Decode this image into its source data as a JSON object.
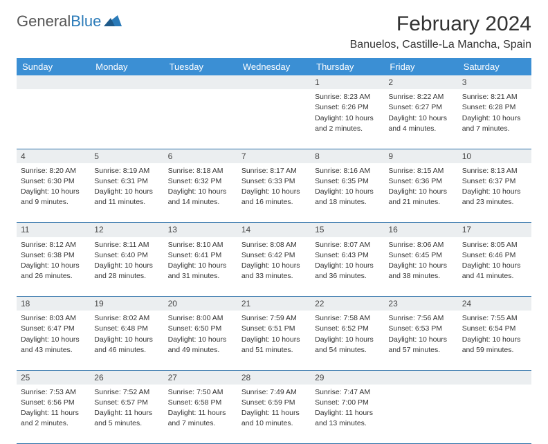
{
  "logo": {
    "text1": "General",
    "text2": "Blue"
  },
  "title": "February 2024",
  "location": "Banuelos, Castille-La Mancha, Spain",
  "colors": {
    "header_bg": "#3b8fd4",
    "header_text": "#ffffff",
    "daynum_bg": "#ebeef0",
    "rule": "#2a6fa8",
    "logo_gray": "#555555",
    "logo_blue": "#2a7ab8"
  },
  "weekdays": [
    "Sunday",
    "Monday",
    "Tuesday",
    "Wednesday",
    "Thursday",
    "Friday",
    "Saturday"
  ],
  "weeks": [
    {
      "nums": [
        "",
        "",
        "",
        "",
        "1",
        "2",
        "3"
      ],
      "cells": [
        null,
        null,
        null,
        null,
        {
          "sunrise": "Sunrise: 8:23 AM",
          "sunset": "Sunset: 6:26 PM",
          "day1": "Daylight: 10 hours",
          "day2": "and 2 minutes."
        },
        {
          "sunrise": "Sunrise: 8:22 AM",
          "sunset": "Sunset: 6:27 PM",
          "day1": "Daylight: 10 hours",
          "day2": "and 4 minutes."
        },
        {
          "sunrise": "Sunrise: 8:21 AM",
          "sunset": "Sunset: 6:28 PM",
          "day1": "Daylight: 10 hours",
          "day2": "and 7 minutes."
        }
      ]
    },
    {
      "nums": [
        "4",
        "5",
        "6",
        "7",
        "8",
        "9",
        "10"
      ],
      "cells": [
        {
          "sunrise": "Sunrise: 8:20 AM",
          "sunset": "Sunset: 6:30 PM",
          "day1": "Daylight: 10 hours",
          "day2": "and 9 minutes."
        },
        {
          "sunrise": "Sunrise: 8:19 AM",
          "sunset": "Sunset: 6:31 PM",
          "day1": "Daylight: 10 hours",
          "day2": "and 11 minutes."
        },
        {
          "sunrise": "Sunrise: 8:18 AM",
          "sunset": "Sunset: 6:32 PM",
          "day1": "Daylight: 10 hours",
          "day2": "and 14 minutes."
        },
        {
          "sunrise": "Sunrise: 8:17 AM",
          "sunset": "Sunset: 6:33 PM",
          "day1": "Daylight: 10 hours",
          "day2": "and 16 minutes."
        },
        {
          "sunrise": "Sunrise: 8:16 AM",
          "sunset": "Sunset: 6:35 PM",
          "day1": "Daylight: 10 hours",
          "day2": "and 18 minutes."
        },
        {
          "sunrise": "Sunrise: 8:15 AM",
          "sunset": "Sunset: 6:36 PM",
          "day1": "Daylight: 10 hours",
          "day2": "and 21 minutes."
        },
        {
          "sunrise": "Sunrise: 8:13 AM",
          "sunset": "Sunset: 6:37 PM",
          "day1": "Daylight: 10 hours",
          "day2": "and 23 minutes."
        }
      ]
    },
    {
      "nums": [
        "11",
        "12",
        "13",
        "14",
        "15",
        "16",
        "17"
      ],
      "cells": [
        {
          "sunrise": "Sunrise: 8:12 AM",
          "sunset": "Sunset: 6:38 PM",
          "day1": "Daylight: 10 hours",
          "day2": "and 26 minutes."
        },
        {
          "sunrise": "Sunrise: 8:11 AM",
          "sunset": "Sunset: 6:40 PM",
          "day1": "Daylight: 10 hours",
          "day2": "and 28 minutes."
        },
        {
          "sunrise": "Sunrise: 8:10 AM",
          "sunset": "Sunset: 6:41 PM",
          "day1": "Daylight: 10 hours",
          "day2": "and 31 minutes."
        },
        {
          "sunrise": "Sunrise: 8:08 AM",
          "sunset": "Sunset: 6:42 PM",
          "day1": "Daylight: 10 hours",
          "day2": "and 33 minutes."
        },
        {
          "sunrise": "Sunrise: 8:07 AM",
          "sunset": "Sunset: 6:43 PM",
          "day1": "Daylight: 10 hours",
          "day2": "and 36 minutes."
        },
        {
          "sunrise": "Sunrise: 8:06 AM",
          "sunset": "Sunset: 6:45 PM",
          "day1": "Daylight: 10 hours",
          "day2": "and 38 minutes."
        },
        {
          "sunrise": "Sunrise: 8:05 AM",
          "sunset": "Sunset: 6:46 PM",
          "day1": "Daylight: 10 hours",
          "day2": "and 41 minutes."
        }
      ]
    },
    {
      "nums": [
        "18",
        "19",
        "20",
        "21",
        "22",
        "23",
        "24"
      ],
      "cells": [
        {
          "sunrise": "Sunrise: 8:03 AM",
          "sunset": "Sunset: 6:47 PM",
          "day1": "Daylight: 10 hours",
          "day2": "and 43 minutes."
        },
        {
          "sunrise": "Sunrise: 8:02 AM",
          "sunset": "Sunset: 6:48 PM",
          "day1": "Daylight: 10 hours",
          "day2": "and 46 minutes."
        },
        {
          "sunrise": "Sunrise: 8:00 AM",
          "sunset": "Sunset: 6:50 PM",
          "day1": "Daylight: 10 hours",
          "day2": "and 49 minutes."
        },
        {
          "sunrise": "Sunrise: 7:59 AM",
          "sunset": "Sunset: 6:51 PM",
          "day1": "Daylight: 10 hours",
          "day2": "and 51 minutes."
        },
        {
          "sunrise": "Sunrise: 7:58 AM",
          "sunset": "Sunset: 6:52 PM",
          "day1": "Daylight: 10 hours",
          "day2": "and 54 minutes."
        },
        {
          "sunrise": "Sunrise: 7:56 AM",
          "sunset": "Sunset: 6:53 PM",
          "day1": "Daylight: 10 hours",
          "day2": "and 57 minutes."
        },
        {
          "sunrise": "Sunrise: 7:55 AM",
          "sunset": "Sunset: 6:54 PM",
          "day1": "Daylight: 10 hours",
          "day2": "and 59 minutes."
        }
      ]
    },
    {
      "nums": [
        "25",
        "26",
        "27",
        "28",
        "29",
        "",
        ""
      ],
      "cells": [
        {
          "sunrise": "Sunrise: 7:53 AM",
          "sunset": "Sunset: 6:56 PM",
          "day1": "Daylight: 11 hours",
          "day2": "and 2 minutes."
        },
        {
          "sunrise": "Sunrise: 7:52 AM",
          "sunset": "Sunset: 6:57 PM",
          "day1": "Daylight: 11 hours",
          "day2": "and 5 minutes."
        },
        {
          "sunrise": "Sunrise: 7:50 AM",
          "sunset": "Sunset: 6:58 PM",
          "day1": "Daylight: 11 hours",
          "day2": "and 7 minutes."
        },
        {
          "sunrise": "Sunrise: 7:49 AM",
          "sunset": "Sunset: 6:59 PM",
          "day1": "Daylight: 11 hours",
          "day2": "and 10 minutes."
        },
        {
          "sunrise": "Sunrise: 7:47 AM",
          "sunset": "Sunset: 7:00 PM",
          "day1": "Daylight: 11 hours",
          "day2": "and 13 minutes."
        },
        null,
        null
      ]
    }
  ]
}
